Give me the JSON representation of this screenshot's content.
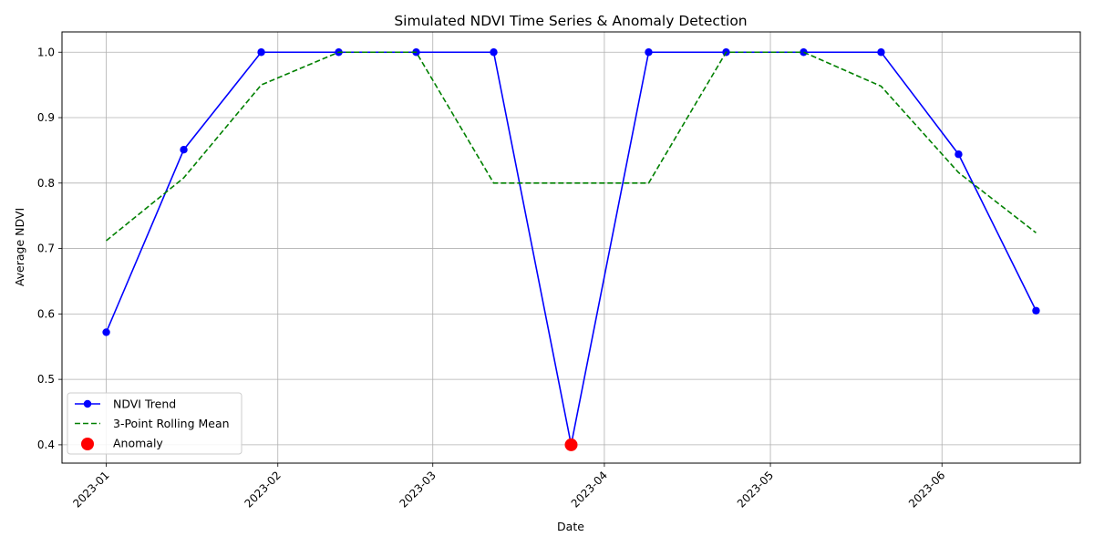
{
  "chart_data": {
    "type": "line",
    "title": "Simulated NDVI Time Series & Anomaly Detection",
    "xlabel": "Date",
    "ylabel": "Average NDVI",
    "x": [
      "2023-01-01",
      "2023-01-15",
      "2023-01-29",
      "2023-02-12",
      "2023-02-26",
      "2023-03-12",
      "2023-03-26",
      "2023-04-09",
      "2023-04-23",
      "2023-05-07",
      "2023-05-21",
      "2023-06-04",
      "2023-06-18"
    ],
    "xticks": [
      "2023-01",
      "2023-02",
      "2023-03",
      "2023-04",
      "2023-05",
      "2023-06"
    ],
    "xtick_dates": [
      "2023-01-01",
      "2023-02-01",
      "2023-03-01",
      "2023-04-01",
      "2023-05-01",
      "2023-06-01"
    ],
    "xlim": [
      "2022-12-24",
      "2023-06-26"
    ],
    "yticks": [
      "0.4",
      "0.5",
      "0.6",
      "0.7",
      "0.8",
      "0.9",
      "1.0"
    ],
    "ylim": [
      0.372,
      1.031
    ],
    "grid": true,
    "legend_position": "lower-left",
    "series": [
      {
        "name": "NDVI Trend",
        "style": "solid-marker",
        "color": "#0000ff",
        "values": [
          0.572,
          0.851,
          1.0,
          1.0,
          1.0,
          1.0,
          0.4,
          1.0,
          1.0,
          1.0,
          1.0,
          0.844,
          0.605
        ]
      },
      {
        "name": "3-Point Rolling Mean",
        "style": "dashed",
        "color": "#008000",
        "values": [
          0.712,
          0.808,
          0.95,
          1.0,
          1.0,
          0.8,
          0.8,
          0.8,
          1.0,
          1.0,
          0.948,
          0.816,
          0.724
        ]
      }
    ],
    "anomalies": {
      "name": "Anomaly",
      "color": "#ff0000",
      "x": [
        "2023-03-26"
      ],
      "values": [
        0.4
      ]
    }
  }
}
